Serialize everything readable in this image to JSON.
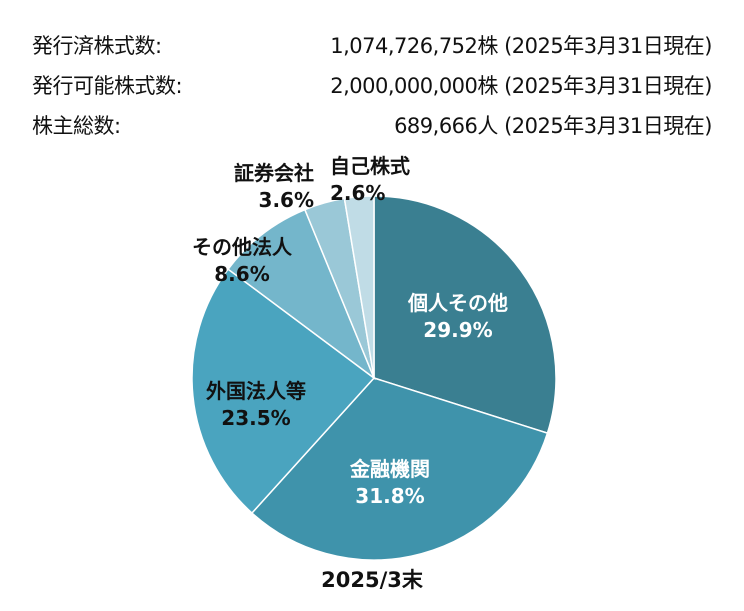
{
  "info": {
    "rows": [
      {
        "label": "発行済株式数:",
        "value": "1,074,726,752株 (2025年3月31日現在)"
      },
      {
        "label": "発行可能株式数:",
        "value": "2,000,000,000株 (2025年3月31日現在)"
      },
      {
        "label": "株主総数:",
        "value": "689,666人 (2025年3月31日現在)"
      }
    ]
  },
  "chart_data": {
    "type": "pie",
    "title": "",
    "caption": "2025/3末",
    "categories": [
      "個人その他",
      "金融機関",
      "外国法人等",
      "その他法人",
      "証券会社",
      "自己株式"
    ],
    "values": [
      29.9,
      31.8,
      23.5,
      8.6,
      3.6,
      2.6
    ],
    "labels": [
      "29.9%",
      "31.8%",
      "23.5%",
      "8.6%",
      "3.6%",
      "2.6%"
    ],
    "colors": [
      "#3a7f91",
      "#3f93ab",
      "#4aa4bf",
      "#74b6cb",
      "#9ac8d7",
      "#c0dce6"
    ],
    "start_angle": "12 o'clock, clockwise",
    "legend": "none (inline labels)"
  }
}
